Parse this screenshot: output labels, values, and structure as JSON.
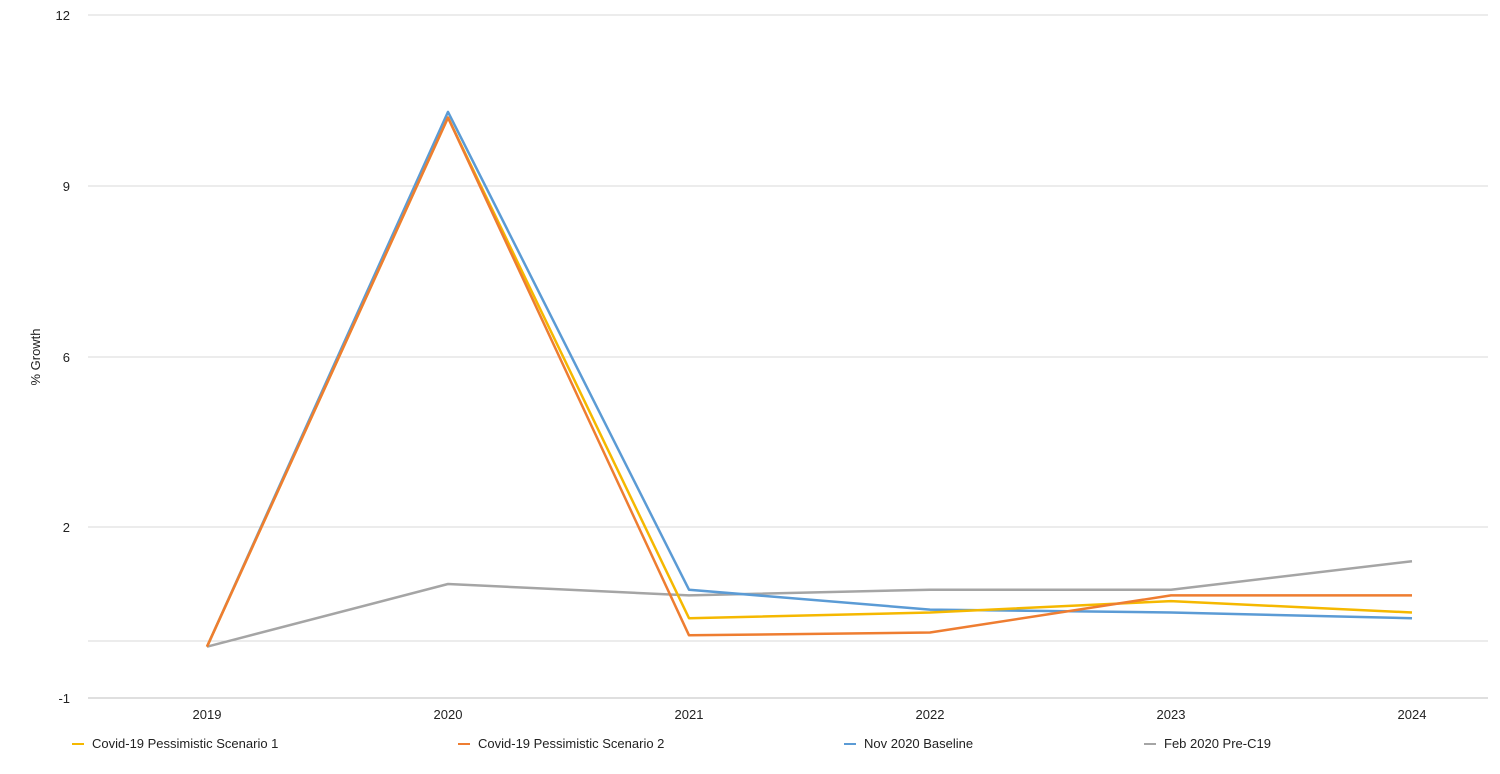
{
  "chart_data": {
    "type": "line",
    "title": "",
    "xlabel": "",
    "ylabel": "% Growth",
    "x": [
      "2019",
      "2020",
      "2021",
      "2022",
      "2023",
      "2024"
    ],
    "y_ticks": [
      -1,
      2,
      6,
      9,
      12
    ],
    "ylim": [
      -1,
      12
    ],
    "grid": true,
    "legend_position": "bottom",
    "series": [
      {
        "name": "Covid-19 Pessimistic Scenario 1",
        "color": "#f5b800",
        "values": [
          -0.1,
          10.2,
          0.4,
          0.5,
          0.7,
          0.5
        ]
      },
      {
        "name": "Covid-19 Pessimistic Scenario 2",
        "color": "#ee7d31",
        "values": [
          -0.1,
          10.2,
          0.1,
          0.15,
          0.8,
          0.8
        ]
      },
      {
        "name": "Nov 2020 Baseline",
        "color": "#5b9bd5",
        "values": [
          -0.1,
          10.3,
          0.9,
          0.55,
          0.5,
          0.4
        ]
      },
      {
        "name": "Feb 2020 Pre-C19",
        "color": "#a5a5a5",
        "values": [
          -0.1,
          1.0,
          0.8,
          0.9,
          0.9,
          1.4
        ]
      }
    ]
  }
}
